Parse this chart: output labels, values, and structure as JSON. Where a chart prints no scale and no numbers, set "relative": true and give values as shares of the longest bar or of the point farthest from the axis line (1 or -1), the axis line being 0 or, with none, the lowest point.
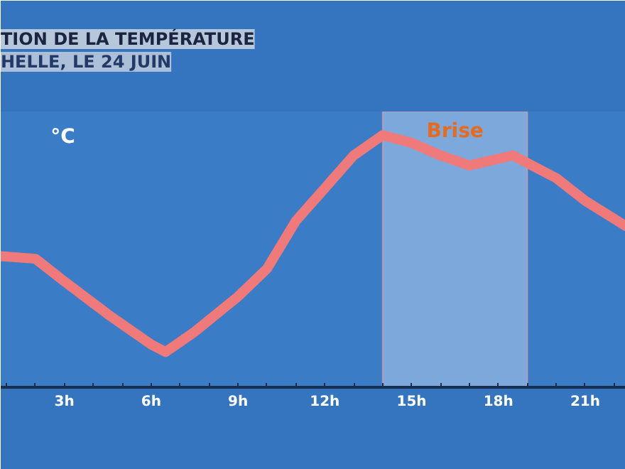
{
  "chart_data": {
    "type": "line",
    "title": "TION DE LA TEMPÉRATURE",
    "subtitle": "HELLE, LE 24 JUIN",
    "ylabel": "°C",
    "relative": true,
    "x": [
      0.8,
      2,
      3,
      4.5,
      6,
      6.5,
      7.5,
      9,
      10,
      11,
      12,
      13,
      14,
      15,
      16,
      17,
      18.5,
      20,
      21,
      22.4
    ],
    "series": [
      {
        "color": "#f07a7a",
        "values": [
          0.52,
          0.51,
          0.42,
          0.29,
          0.17,
          0.14,
          0.22,
          0.36,
          0.47,
          0.66,
          0.79,
          0.92,
          1.0,
          0.97,
          0.92,
          0.88,
          0.92,
          0.83,
          0.74,
          0.64
        ]
      }
    ],
    "xlim": [
      0.8,
      22.4
    ],
    "xticks": [
      {
        "value": 1,
        "label": null
      },
      {
        "value": 2,
        "label": null
      },
      {
        "value": 3,
        "label": "3h"
      },
      {
        "value": 4,
        "label": null
      },
      {
        "value": 5,
        "label": null
      },
      {
        "value": 6,
        "label": "6h"
      },
      {
        "value": 7,
        "label": null
      },
      {
        "value": 8,
        "label": null
      },
      {
        "value": 9,
        "label": "9h"
      },
      {
        "value": 10,
        "label": null
      },
      {
        "value": 11,
        "label": null
      },
      {
        "value": 12,
        "label": "12h"
      },
      {
        "value": 13,
        "label": null
      },
      {
        "value": 14,
        "label": null
      },
      {
        "value": 15,
        "label": "15h"
      },
      {
        "value": 16,
        "label": null
      },
      {
        "value": 17,
        "label": null
      },
      {
        "value": 18,
        "label": "18h"
      },
      {
        "value": 19,
        "label": null
      },
      {
        "value": 20,
        "label": null
      },
      {
        "value": 21,
        "label": "21h"
      },
      {
        "value": 22,
        "label": null
      }
    ],
    "bands": [
      {
        "axis": "x",
        "from": 14,
        "to": 19,
        "label": "Brise",
        "color": "#a9c6ea"
      }
    ],
    "grid": false,
    "marker": "none",
    "line_style": "solid"
  }
}
